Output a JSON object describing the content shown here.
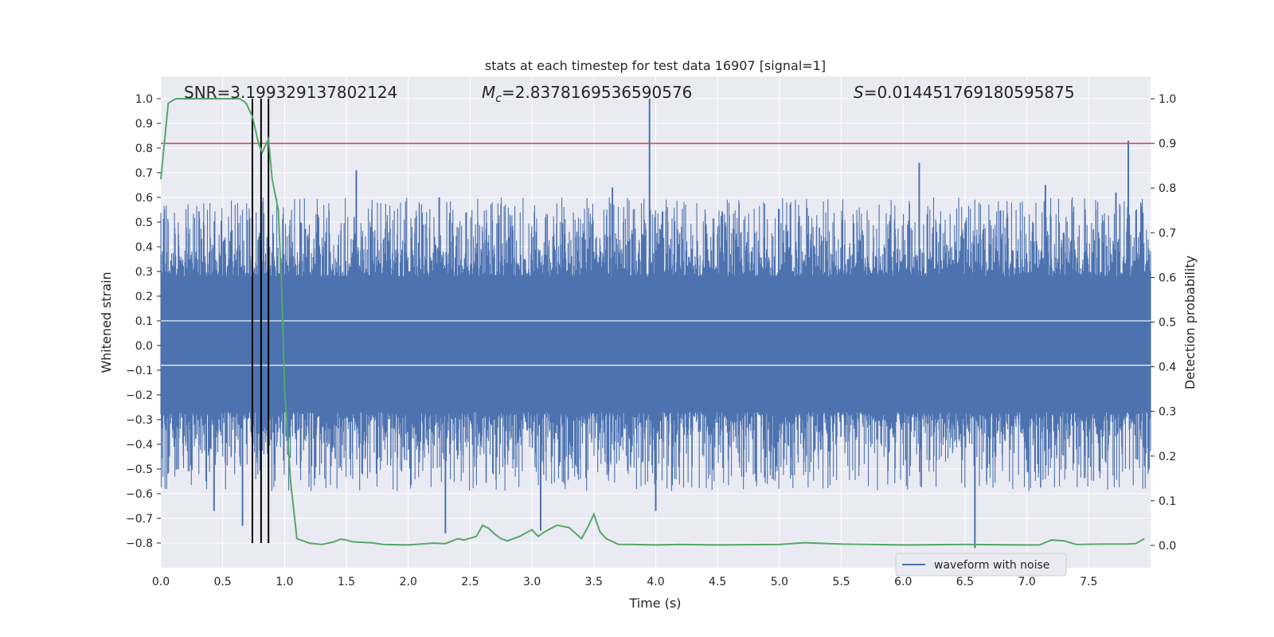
{
  "chart_data": {
    "type": "line",
    "title": "stats at each timestep for test data 16907 [signal=1]",
    "xlabel": "Time (s)",
    "ylabel": "Whitened strain",
    "ylabel_right": "Detection probability",
    "xlim": [
      0.0,
      8.0
    ],
    "ylim": [
      -0.9,
      1.09
    ],
    "ylim_right": [
      -0.05,
      1.05
    ],
    "xticks": [
      "0.0",
      "0.5",
      "1.0",
      "1.5",
      "2.0",
      "2.5",
      "3.0",
      "3.5",
      "4.0",
      "4.5",
      "5.0",
      "5.5",
      "6.0",
      "6.5",
      "7.0",
      "7.5"
    ],
    "yticks": [
      "1.0",
      "0.9",
      "0.8",
      "0.7",
      "0.6",
      "0.5",
      "0.4",
      "0.3",
      "0.2",
      "0.1",
      "0.0",
      "−0.1",
      "−0.2",
      "−0.3",
      "−0.4",
      "−0.5",
      "−0.6",
      "−0.7",
      "−0.8"
    ],
    "yticks_right": [
      "1.0",
      "0.9",
      "0.8",
      "0.7",
      "0.6",
      "0.5",
      "0.4",
      "0.3",
      "0.2",
      "0.1",
      "0.0"
    ],
    "annotations": {
      "snr": "SNR=3.199329137802124",
      "mc_symbol": "M",
      "mc_sub": "c",
      "mc_value": "=2.8378169536590576",
      "s_symbol": "S",
      "s_value": "=0.014451769180595875"
    },
    "legend": {
      "label": "waveform with noise",
      "placement": "lower-right"
    },
    "grid": true,
    "threshold_line": {
      "value": 0.9,
      "axis": "right",
      "color": "#c44e52"
    },
    "vertical_markers": {
      "x": [
        0.74,
        0.81,
        0.87
      ],
      "y_range": [
        -0.8,
        1.0
      ],
      "color": "#000000"
    },
    "series": [
      {
        "name": "waveform with noise",
        "axis": "left",
        "color": "#4c72b0",
        "kind": "noise-envelope",
        "band_upper": 0.28,
        "band_lower": -0.27,
        "spikes_up": [
          [
            3.95,
            1.0
          ],
          [
            7.82,
            0.83
          ],
          [
            1.58,
            0.71
          ],
          [
            6.13,
            0.74
          ],
          [
            7.15,
            0.65
          ],
          [
            3.65,
            0.64
          ],
          [
            2.25,
            0.6
          ],
          [
            7.72,
            0.62
          ]
        ],
        "spikes_down": [
          [
            6.58,
            -0.82
          ],
          [
            3.07,
            -0.75
          ],
          [
            2.3,
            -0.76
          ],
          [
            0.66,
            -0.73
          ],
          [
            0.43,
            -0.67
          ],
          [
            4.0,
            -0.67
          ]
        ]
      },
      {
        "name": "Detection probability",
        "axis": "right",
        "color": "#55a868",
        "x": [
          0.0,
          0.06,
          0.12,
          0.2,
          0.3,
          0.4,
          0.5,
          0.6,
          0.64,
          0.69,
          0.74,
          0.79,
          0.82,
          0.87,
          0.9,
          0.95,
          0.98,
          1.0,
          1.05,
          1.1,
          1.2,
          1.3,
          1.4,
          1.45,
          1.5,
          1.55,
          1.7,
          1.8,
          2.0,
          2.2,
          2.3,
          2.4,
          2.45,
          2.55,
          2.6,
          2.65,
          2.7,
          2.75,
          2.8,
          2.9,
          3.0,
          3.05,
          3.1,
          3.2,
          3.3,
          3.4,
          3.45,
          3.5,
          3.55,
          3.6,
          3.7,
          3.8,
          4.0,
          4.2,
          4.5,
          5.0,
          5.2,
          5.5,
          6.0,
          6.5,
          7.0,
          7.1,
          7.2,
          7.3,
          7.4,
          7.6,
          7.8,
          7.88,
          7.95
        ],
        "y": [
          0.82,
          0.99,
          1.0,
          1.0,
          1.0,
          1.0,
          1.0,
          1.0,
          1.0,
          0.99,
          0.96,
          0.9,
          0.88,
          0.91,
          0.82,
          0.75,
          0.55,
          0.35,
          0.14,
          0.015,
          0.005,
          0.002,
          0.008,
          0.014,
          0.012,
          0.008,
          0.006,
          0.002,
          0.001,
          0.005,
          0.004,
          0.015,
          0.012,
          0.02,
          0.045,
          0.038,
          0.025,
          0.015,
          0.01,
          0.02,
          0.035,
          0.02,
          0.03,
          0.045,
          0.04,
          0.015,
          0.04,
          0.07,
          0.03,
          0.015,
          0.002,
          0.002,
          0.001,
          0.002,
          0.001,
          0.002,
          0.006,
          0.003,
          0.001,
          0.002,
          0.001,
          0.001,
          0.012,
          0.01,
          0.002,
          0.003,
          0.003,
          0.004,
          0.015
        ]
      }
    ]
  },
  "colors": {
    "axes_bg": "#eaeaf2",
    "grid": "#ffffff",
    "text": "#262626"
  }
}
